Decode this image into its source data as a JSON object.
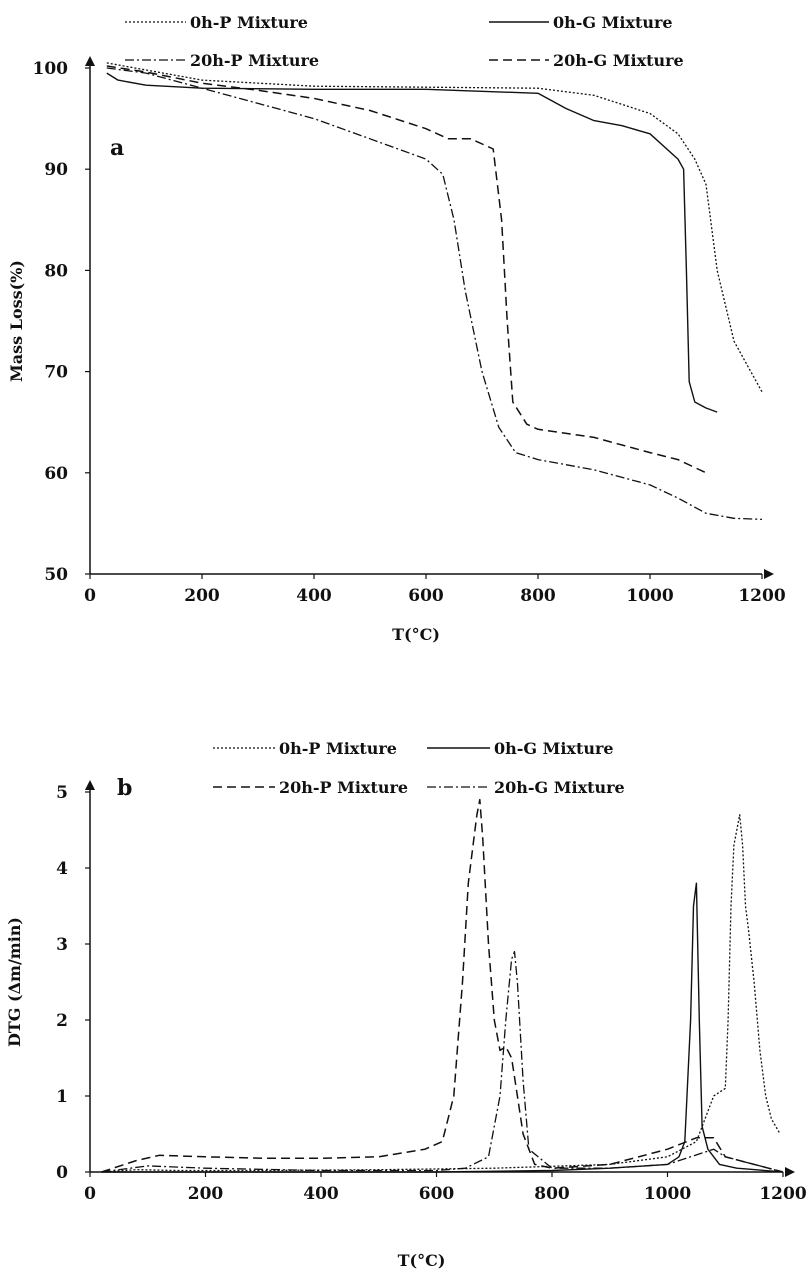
{
  "chart_data": [
    {
      "type": "line",
      "panel_label": "a",
      "xlabel": "T(°C)",
      "ylabel": "Mass Loss(%)",
      "xlim": [
        0,
        1200
      ],
      "ylim": [
        50,
        100
      ],
      "xticks": [
        "0",
        "200",
        "400",
        "600",
        "800",
        "1000",
        "1200"
      ],
      "yticks": [
        "50",
        "60",
        "70",
        "80",
        "90",
        "100"
      ],
      "grid": false,
      "legend": "top",
      "series": [
        {
          "name": "0h-P Mixture",
          "style": "dotted",
          "x": [
            30,
            100,
            200,
            400,
            600,
            800,
            900,
            1000,
            1050,
            1080,
            1100,
            1120,
            1150,
            1200
          ],
          "y": [
            100.5,
            99.8,
            98.8,
            98.2,
            98.1,
            98.0,
            97.3,
            95.5,
            93.5,
            91.0,
            88.5,
            80.0,
            73.0,
            68.0
          ]
        },
        {
          "name": "0h-G Mixture",
          "style": "solid",
          "x": [
            30,
            50,
            100,
            200,
            400,
            600,
            800,
            850,
            900,
            950,
            1000,
            1050,
            1060,
            1065,
            1070,
            1080,
            1100,
            1120
          ],
          "y": [
            99.5,
            98.8,
            98.3,
            98.0,
            97.9,
            97.9,
            97.5,
            96.0,
            94.8,
            94.3,
            93.5,
            91.0,
            90.0,
            80.0,
            69.0,
            67.0,
            66.4,
            66.0
          ]
        },
        {
          "name": "20h-P Mixture",
          "style": "dashdot",
          "x": [
            30,
            100,
            200,
            300,
            400,
            500,
            600,
            630,
            650,
            670,
            700,
            730,
            760,
            800,
            900,
            1000,
            1050,
            1100,
            1150,
            1200
          ],
          "y": [
            100.0,
            99.5,
            98.0,
            96.5,
            95.0,
            93.0,
            91.0,
            89.5,
            85.0,
            78.0,
            70.0,
            64.5,
            62.0,
            61.3,
            60.3,
            58.8,
            57.5,
            56.0,
            55.5,
            55.4
          ]
        },
        {
          "name": "20h-G Mixture",
          "style": "dashed",
          "x": [
            30,
            100,
            200,
            300,
            400,
            500,
            600,
            640,
            680,
            720,
            735,
            745,
            755,
            780,
            800,
            900,
            1000,
            1050,
            1100
          ],
          "y": [
            100.2,
            99.6,
            98.5,
            97.8,
            97.0,
            95.8,
            94.0,
            93.0,
            93.0,
            92.0,
            85.0,
            75.0,
            67.0,
            64.8,
            64.3,
            63.5,
            62.0,
            61.3,
            60.0
          ]
        }
      ]
    },
    {
      "type": "line",
      "panel_label": "b",
      "xlabel": "T(°C)",
      "ylabel": "DTG (Δm/min)",
      "xlim": [
        0,
        1200
      ],
      "ylim": [
        0,
        5
      ],
      "xticks": [
        "0",
        "200",
        "400",
        "600",
        "800",
        "1000",
        "1200"
      ],
      "yticks": [
        "0",
        "1",
        "2",
        "3",
        "4",
        "5"
      ],
      "grid": false,
      "legend": "top",
      "series": [
        {
          "name": "0h-P Mixture",
          "style": "dotted",
          "x": [
            20,
            80,
            150,
            300,
            500,
            700,
            900,
            1000,
            1050,
            1080,
            1100,
            1105,
            1110,
            1115,
            1120,
            1125,
            1130,
            1135,
            1140,
            1150,
            1160,
            1170,
            1180,
            1195
          ],
          "y": [
            0.0,
            0.03,
            0.02,
            0.02,
            0.03,
            0.05,
            0.1,
            0.2,
            0.4,
            1.0,
            1.1,
            2.0,
            3.5,
            4.3,
            4.5,
            4.7,
            4.3,
            3.5,
            3.2,
            2.5,
            1.6,
            1.0,
            0.7,
            0.5
          ]
        },
        {
          "name": "0h-G Mixture",
          "style": "solid",
          "x": [
            20,
            200,
            400,
            600,
            800,
            900,
            1000,
            1020,
            1030,
            1040,
            1045,
            1050,
            1055,
            1060,
            1070,
            1090,
            1120,
            1200
          ],
          "y": [
            0.0,
            0.0,
            0.0,
            0.0,
            0.02,
            0.05,
            0.1,
            0.2,
            0.4,
            2.0,
            3.5,
            3.8,
            2.0,
            0.6,
            0.3,
            0.1,
            0.05,
            0.0
          ]
        },
        {
          "name": "20h-P Mixture",
          "style": "dashed",
          "x": [
            20,
            80,
            120,
            200,
            300,
            400,
            500,
            580,
            610,
            630,
            645,
            655,
            665,
            670,
            675,
            680,
            690,
            700,
            710,
            720,
            730,
            740,
            750,
            770,
            800,
            900,
            1000,
            1050,
            1080,
            1100,
            1200
          ],
          "y": [
            0.0,
            0.15,
            0.22,
            0.2,
            0.18,
            0.18,
            0.2,
            0.3,
            0.4,
            1.0,
            2.5,
            3.8,
            4.4,
            4.7,
            4.9,
            4.4,
            3.0,
            2.0,
            1.6,
            1.65,
            1.5,
            1.0,
            0.5,
            0.1,
            0.05,
            0.1,
            0.3,
            0.45,
            0.45,
            0.2,
            0.0
          ]
        },
        {
          "name": "20h-G Mixture",
          "style": "dashdot",
          "x": [
            20,
            100,
            200,
            400,
            600,
            650,
            690,
            710,
            720,
            730,
            735,
            740,
            750,
            760,
            800,
            900,
            1000,
            1080,
            1100,
            1200
          ],
          "y": [
            0.0,
            0.08,
            0.05,
            0.02,
            0.02,
            0.05,
            0.2,
            1.0,
            2.0,
            2.8,
            2.9,
            2.5,
            1.2,
            0.3,
            0.05,
            0.05,
            0.1,
            0.3,
            0.2,
            0.0
          ]
        }
      ]
    }
  ]
}
